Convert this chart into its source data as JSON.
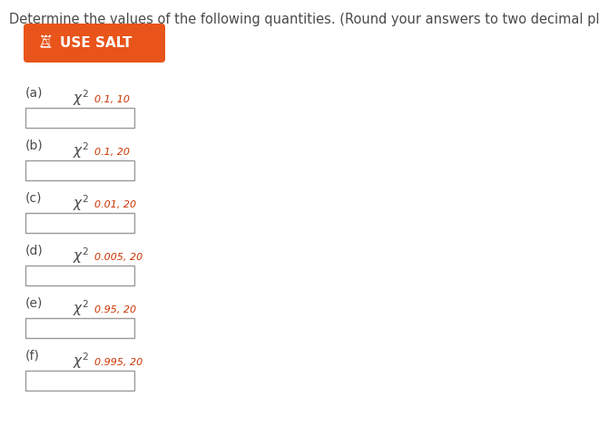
{
  "title_text": "Determine the values of the following quantities. (Round your answers to two decimal places.)",
  "button_text": "USE SALT",
  "button_color": "#E8541A",
  "button_text_color": "#ffffff",
  "bg_color": "#ffffff",
  "title_color": "#4a4a4a",
  "label_color": "#4a4a4a",
  "chi_color": "#4a4a4a",
  "sub_color": "#cc3300",
  "items": [
    {
      "label": "(a)",
      "chi_sub": "0.1, 10"
    },
    {
      "label": "(b)",
      "chi_sub": "0.1, 20"
    },
    {
      "label": "(c)",
      "chi_sub": "0.01, 20"
    },
    {
      "label": "(d)",
      "chi_sub": "0.005, 20"
    },
    {
      "label": "(e)",
      "chi_sub": "0.95, 20"
    },
    {
      "label": "(f)",
      "chi_sub": "0.995, 20"
    }
  ],
  "title_fontsize": 10.5,
  "label_fontsize": 10,
  "chi_fontsize": 11,
  "sup_fontsize": 8,
  "sub_fontsize": 8,
  "button_fontsize": 11
}
